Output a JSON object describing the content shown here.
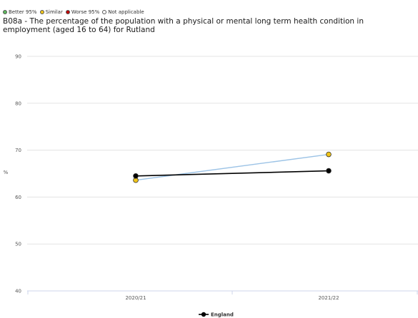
{
  "legend": {
    "items": [
      {
        "label": "Better 95%",
        "color": "#5cb85c"
      },
      {
        "label": "Similar",
        "color": "#f0c419"
      },
      {
        "label": "Worse 95%",
        "color": "#c00000"
      },
      {
        "label": "Not applicable",
        "color": "#ffffff"
      }
    ]
  },
  "chart_data": {
    "type": "line",
    "title": "B08a - The percentage of the population with a physical or mental long term health condition in employment (aged 16 to 64) for Rutland",
    "ylabel": "%",
    "xlabel": "",
    "x": [
      "2020/21",
      "2021/22"
    ],
    "ylim": [
      40,
      90
    ],
    "yticks": [
      40,
      50,
      60,
      70,
      80,
      90
    ],
    "grid": true,
    "legend_position": "bottom",
    "series": [
      {
        "name": "",
        "color": "#9cc3e6",
        "marker_color": "#f0c419",
        "values": [
          63.6,
          69.1
        ]
      },
      {
        "name": "England",
        "color": "#000000",
        "marker_color": "#000000",
        "values": [
          64.5,
          65.6
        ]
      }
    ]
  }
}
